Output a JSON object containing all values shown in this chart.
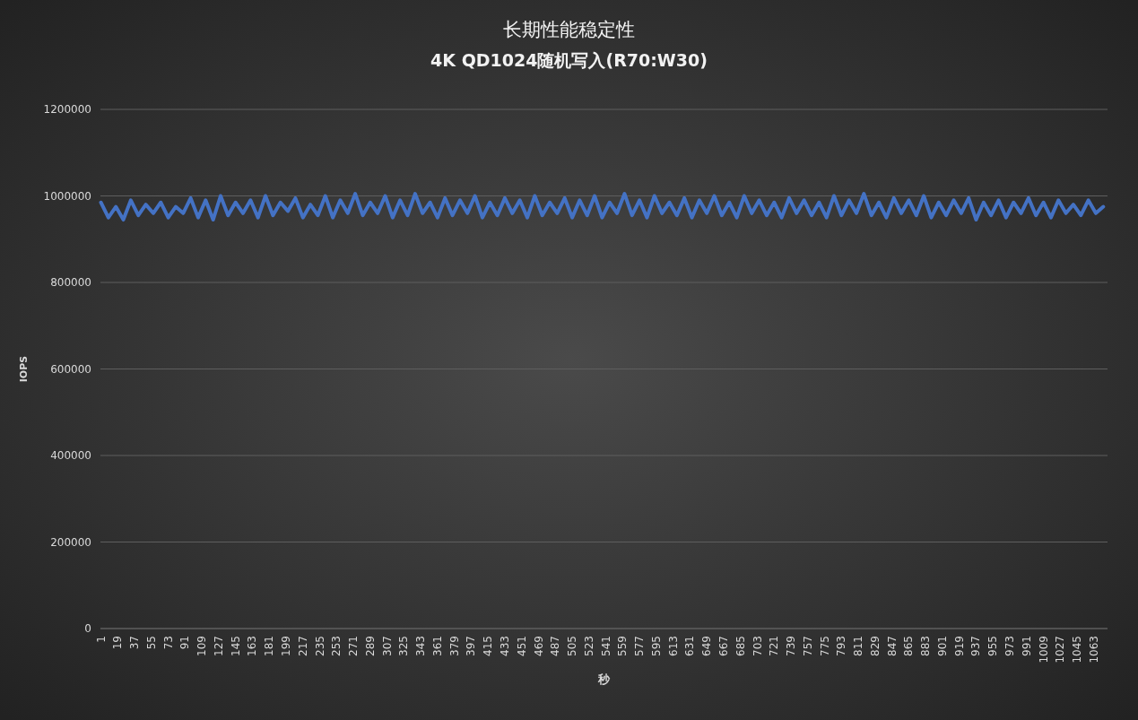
{
  "chart_data": {
    "type": "line",
    "title": "长期性能稳定性",
    "subtitle": "4K QD1024随机写入(R70:W30)",
    "xlabel": "秒",
    "ylabel": "IOPS",
    "grid": "y",
    "xlim": [
      0.5,
      1077.5
    ],
    "ylim": [
      0,
      1200000
    ],
    "yticks": [
      0,
      200000,
      400000,
      600000,
      800000,
      1000000,
      1200000
    ],
    "xticks": [
      1,
      19,
      37,
      55,
      73,
      91,
      109,
      127,
      145,
      163,
      181,
      199,
      217,
      235,
      253,
      271,
      289,
      307,
      325,
      343,
      361,
      379,
      397,
      415,
      433,
      451,
      469,
      487,
      505,
      523,
      541,
      559,
      577,
      595,
      613,
      631,
      649,
      667,
      685,
      703,
      721,
      739,
      757,
      775,
      793,
      811,
      829,
      847,
      865,
      883,
      901,
      919,
      937,
      955,
      973,
      991,
      1009,
      1027,
      1045,
      1063
    ],
    "x": [
      1,
      9,
      17,
      25,
      33,
      41,
      49,
      57,
      65,
      73,
      81,
      89,
      97,
      105,
      113,
      121,
      129,
      137,
      145,
      153,
      161,
      169,
      177,
      185,
      193,
      201,
      209,
      217,
      225,
      233,
      241,
      249,
      257,
      265,
      273,
      281,
      289,
      297,
      305,
      313,
      321,
      329,
      337,
      345,
      353,
      361,
      369,
      377,
      385,
      393,
      401,
      409,
      417,
      425,
      433,
      441,
      449,
      457,
      465,
      473,
      481,
      489,
      497,
      505,
      513,
      521,
      529,
      537,
      545,
      553,
      561,
      569,
      577,
      585,
      593,
      601,
      609,
      617,
      625,
      633,
      641,
      649,
      657,
      665,
      673,
      681,
      689,
      697,
      705,
      713,
      721,
      729,
      737,
      745,
      753,
      761,
      769,
      777,
      785,
      793,
      801,
      809,
      817,
      825,
      833,
      841,
      849,
      857,
      865,
      873,
      881,
      889,
      897,
      905,
      913,
      921,
      929,
      937,
      945,
      953,
      961,
      969,
      977,
      985,
      993,
      1001,
      1009,
      1017,
      1025,
      1033,
      1041,
      1049,
      1057,
      1065,
      1073
    ],
    "series": [
      {
        "color": "#4472c4",
        "values": [
          985000,
          950000,
          975000,
          945000,
          990000,
          955000,
          980000,
          960000,
          985000,
          950000,
          975000,
          960000,
          995000,
          950000,
          990000,
          945000,
          1000000,
          955000,
          985000,
          960000,
          990000,
          950000,
          1000000,
          955000,
          985000,
          965000,
          995000,
          950000,
          980000,
          955000,
          1000000,
          950000,
          990000,
          960000,
          1005000,
          955000,
          985000,
          960000,
          1000000,
          950000,
          990000,
          955000,
          1005000,
          960000,
          985000,
          950000,
          995000,
          955000,
          990000,
          960000,
          1000000,
          950000,
          985000,
          955000,
          995000,
          960000,
          990000,
          950000,
          1000000,
          955000,
          985000,
          960000,
          995000,
          950000,
          990000,
          955000,
          1000000,
          950000,
          985000,
          960000,
          1005000,
          955000,
          990000,
          950000,
          1000000,
          960000,
          985000,
          955000,
          995000,
          950000,
          990000,
          960000,
          1000000,
          955000,
          985000,
          950000,
          1000000,
          960000,
          990000,
          955000,
          985000,
          950000,
          995000,
          960000,
          990000,
          955000,
          985000,
          950000,
          1000000,
          955000,
          990000,
          960000,
          1005000,
          955000,
          985000,
          950000,
          995000,
          960000,
          990000,
          955000,
          1000000,
          950000,
          985000,
          955000,
          990000,
          960000,
          995000,
          945000,
          985000,
          955000,
          990000,
          950000,
          985000,
          960000,
          995000,
          955000,
          985000,
          950000,
          990000,
          960000,
          980000,
          955000,
          990000,
          960000,
          975000
        ]
      }
    ]
  }
}
